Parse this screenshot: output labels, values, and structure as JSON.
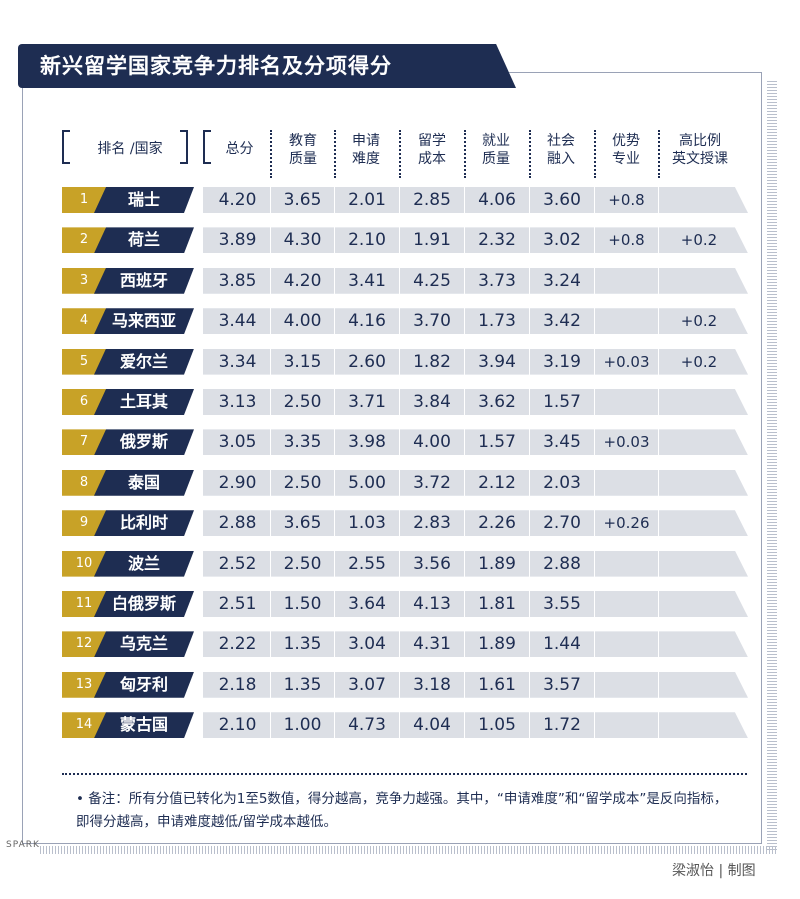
{
  "title": "新兴留学国家竞争力排名及分项得分",
  "headers": {
    "rank_country": "排名 /国家",
    "total": "总分",
    "edu_1": "教育",
    "edu_2": "质量",
    "app_1": "申请",
    "app_2": "难度",
    "cost_1": "留学",
    "cost_2": "成本",
    "job_1": "就业",
    "job_2": "质量",
    "soc_1": "社会",
    "soc_2": "融入",
    "adv_1": "优势",
    "adv_2": "专业",
    "eng_1": "高比例",
    "eng_2": "英文授课"
  },
  "rows": [
    {
      "rank": "1",
      "country": "瑞士",
      "total": "4.20",
      "edu": "3.65",
      "app": "2.01",
      "cost": "2.85",
      "job": "4.06",
      "soc": "3.60",
      "adv": "+0.8",
      "eng": ""
    },
    {
      "rank": "2",
      "country": "荷兰",
      "total": "3.89",
      "edu": "4.30",
      "app": "2.10",
      "cost": "1.91",
      "job": "2.32",
      "soc": "3.02",
      "adv": "+0.8",
      "eng": "+0.2"
    },
    {
      "rank": "3",
      "country": "西班牙",
      "total": "3.85",
      "edu": "4.20",
      "app": "3.41",
      "cost": "4.25",
      "job": "3.73",
      "soc": "3.24",
      "adv": "",
      "eng": ""
    },
    {
      "rank": "4",
      "country": "马来西亚",
      "total": "3.44",
      "edu": "4.00",
      "app": "4.16",
      "cost": "3.70",
      "job": "1.73",
      "soc": "3.42",
      "adv": "",
      "eng": "+0.2"
    },
    {
      "rank": "5",
      "country": "爱尔兰",
      "total": "3.34",
      "edu": "3.15",
      "app": "2.60",
      "cost": "1.82",
      "job": "3.94",
      "soc": "3.19",
      "adv": "+0.03",
      "eng": "+0.2"
    },
    {
      "rank": "6",
      "country": "土耳其",
      "total": "3.13",
      "edu": "2.50",
      "app": "3.71",
      "cost": "3.84",
      "job": "3.62",
      "soc": "1.57",
      "adv": "",
      "eng": ""
    },
    {
      "rank": "7",
      "country": "俄罗斯",
      "total": "3.05",
      "edu": "3.35",
      "app": "3.98",
      "cost": "4.00",
      "job": "1.57",
      "soc": "3.45",
      "adv": "+0.03",
      "eng": ""
    },
    {
      "rank": "8",
      "country": "泰国",
      "total": "2.90",
      "edu": "2.50",
      "app": "5.00",
      "cost": "3.72",
      "job": "2.12",
      "soc": "2.03",
      "adv": "",
      "eng": ""
    },
    {
      "rank": "9",
      "country": "比利时",
      "total": "2.88",
      "edu": "3.65",
      "app": "1.03",
      "cost": "2.83",
      "job": "2.26",
      "soc": "2.70",
      "adv": "+0.26",
      "eng": ""
    },
    {
      "rank": "10",
      "country": "波兰",
      "total": "2.52",
      "edu": "2.50",
      "app": "2.55",
      "cost": "3.56",
      "job": "1.89",
      "soc": "2.88",
      "adv": "",
      "eng": ""
    },
    {
      "rank": "11",
      "country": "白俄罗斯",
      "total": "2.51",
      "edu": "1.50",
      "app": "3.64",
      "cost": "4.13",
      "job": "1.81",
      "soc": "3.55",
      "adv": "",
      "eng": ""
    },
    {
      "rank": "12",
      "country": "乌克兰",
      "total": "2.22",
      "edu": "1.35",
      "app": "3.04",
      "cost": "4.31",
      "job": "1.89",
      "soc": "1.44",
      "adv": "",
      "eng": ""
    },
    {
      "rank": "13",
      "country": "匈牙利",
      "total": "2.18",
      "edu": "1.35",
      "app": "3.07",
      "cost": "3.18",
      "job": "1.61",
      "soc": "3.57",
      "adv": "",
      "eng": ""
    },
    {
      "rank": "14",
      "country": "蒙古国",
      "total": "2.10",
      "edu": "1.00",
      "app": "4.73",
      "cost": "4.04",
      "job": "1.05",
      "soc": "1.72",
      "adv": "",
      "eng": ""
    }
  ],
  "note": "• 备注：所有分值已转化为1至5数值，得分越高，竞争力越强。其中，“申请难度”和“留学成本”是反向指标，即得分越高，申请难度越低/留学成本越低。",
  "credit": "梁淑怡 | 制图",
  "watermark": "SPARK"
}
